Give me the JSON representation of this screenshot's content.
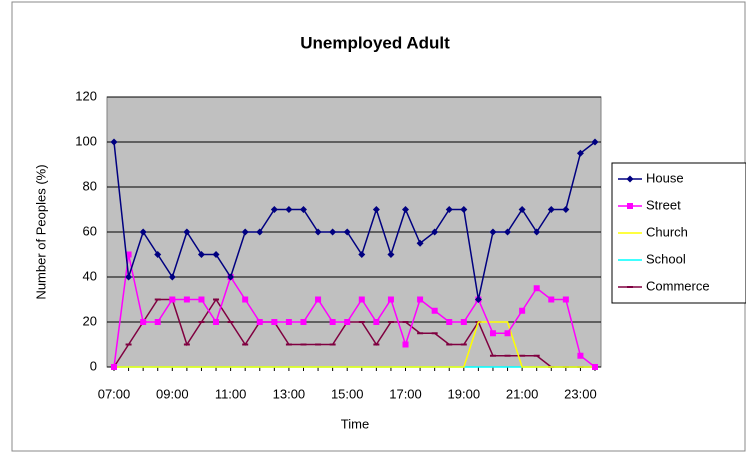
{
  "chart_data": {
    "type": "line",
    "title": "Unemployed Adult",
    "x_label": "Time",
    "y_label": "Number of Peoples (%)",
    "categories": [
      "07:00",
      null,
      null,
      null,
      "09:00",
      null,
      null,
      null,
      "11:00",
      null,
      null,
      null,
      "13:00",
      null,
      null,
      null,
      "15:00",
      null,
      null,
      null,
      "17:00",
      null,
      null,
      null,
      "19:00",
      null,
      null,
      null,
      "21:00",
      null,
      null,
      null,
      "23:00",
      null
    ],
    "series": [
      {
        "name": "House",
        "color": "#000080",
        "marker": "diamond",
        "values": [
          100,
          40,
          60,
          50,
          40,
          60,
          50,
          50,
          40,
          60,
          60,
          70,
          70,
          70,
          60,
          60,
          60,
          50,
          70,
          50,
          70,
          55,
          60,
          70,
          70,
          30,
          60,
          60,
          70,
          60,
          70,
          70,
          95,
          100
        ]
      },
      {
        "name": "Street",
        "color": "#ff00ff",
        "marker": "square",
        "values": [
          0,
          50,
          20,
          20,
          30,
          30,
          30,
          20,
          40,
          30,
          20,
          20,
          20,
          20,
          30,
          20,
          20,
          30,
          20,
          30,
          10,
          30,
          25,
          20,
          20,
          30,
          15,
          15,
          25,
          35,
          30,
          30,
          5,
          0
        ]
      },
      {
        "name": "Church",
        "color": "#ffff00",
        "marker": "none",
        "values": [
          0,
          0,
          0,
          0,
          0,
          0,
          0,
          0,
          0,
          0,
          0,
          0,
          0,
          0,
          0,
          0,
          0,
          0,
          0,
          0,
          0,
          0,
          0,
          0,
          0,
          20,
          20,
          20,
          0,
          0,
          0,
          0,
          0,
          0
        ]
      },
      {
        "name": "School",
        "color": "#00ffff",
        "marker": "none",
        "values": [
          0,
          0,
          0,
          0,
          0,
          0,
          0,
          0,
          0,
          0,
          0,
          0,
          0,
          0,
          0,
          0,
          0,
          0,
          0,
          0,
          0,
          0,
          0,
          0,
          0,
          0,
          0,
          0,
          0,
          0,
          0,
          0,
          0,
          0
        ]
      },
      {
        "name": "Commerce",
        "color": "#800040",
        "marker": "dash",
        "values": [
          0,
          10,
          20,
          30,
          30,
          10,
          20,
          30,
          20,
          10,
          20,
          20,
          10,
          10,
          10,
          10,
          20,
          20,
          10,
          20,
          20,
          15,
          15,
          10,
          10,
          20,
          5,
          5,
          5,
          5,
          0,
          0,
          0,
          0
        ]
      }
    ],
    "ylim": [
      0,
      120
    ],
    "yticks": [
      0,
      20,
      40,
      60,
      80,
      100,
      120
    ],
    "grid": true,
    "plot_background": "#c0c0c0",
    "legend": "right"
  }
}
